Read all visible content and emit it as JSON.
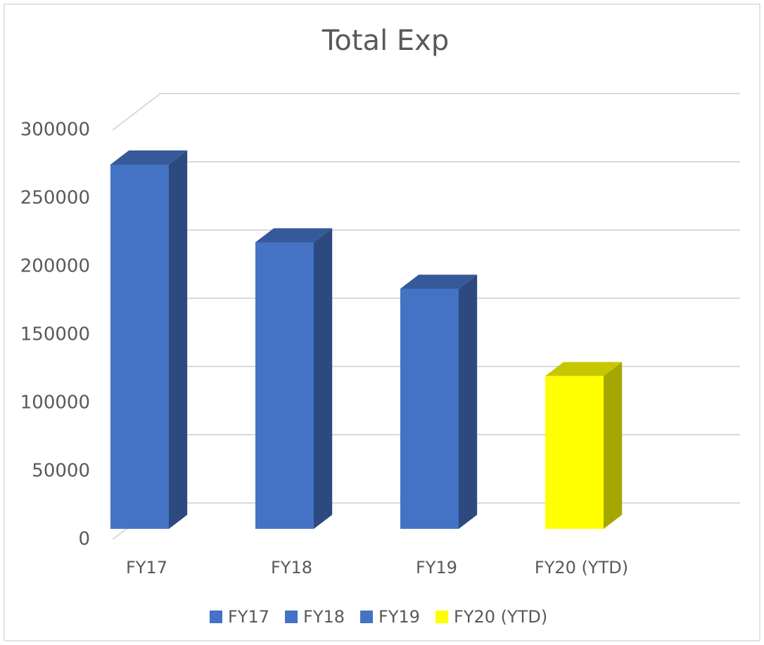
{
  "chart_data": {
    "type": "bar3d",
    "title": "Total Exp",
    "categories": [
      "FY17",
      "FY18",
      "FY19",
      "FY20 (YTD)"
    ],
    "values": [
      267000,
      210000,
      176000,
      112000
    ],
    "colors": [
      "#4472c4",
      "#4472c4",
      "#4472c4",
      "#ffff00"
    ],
    "ylim": [
      0,
      300000
    ],
    "yticks": [
      0,
      50000,
      100000,
      150000,
      200000,
      250000,
      300000
    ],
    "grid": true,
    "legend": "bottom"
  }
}
